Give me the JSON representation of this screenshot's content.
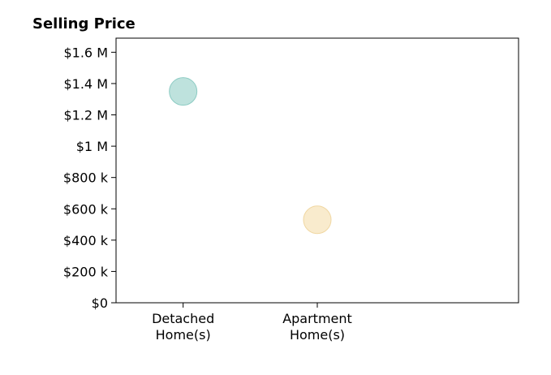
{
  "chart_data": {
    "type": "scatter",
    "title": "Selling Price",
    "xlabel": "",
    "ylabel": "",
    "categories": [
      [
        "Detached",
        "Home(s)"
      ],
      [
        "Apartment",
        "Home(s)"
      ]
    ],
    "values": [
      1350000,
      530000
    ],
    "point_colors": [
      "#a8d8d2",
      "#f7e4bc"
    ],
    "point_stroke_colors": [
      "#8ccbc3",
      "#f0d7a2"
    ],
    "ylim": [
      0,
      1700000
    ],
    "yticks": [
      0,
      200000,
      400000,
      600000,
      800000,
      1000000,
      1200000,
      1400000,
      1600000
    ],
    "ytick_labels": [
      "$0",
      "$200 k",
      "$400 k",
      "$600 k",
      "$800 k",
      "$1 M",
      "$1.2 M",
      "$1.4 M",
      "$1.6 M"
    ],
    "xlim": [
      -0.5,
      2.5
    ],
    "grid": false,
    "legend": "none"
  }
}
